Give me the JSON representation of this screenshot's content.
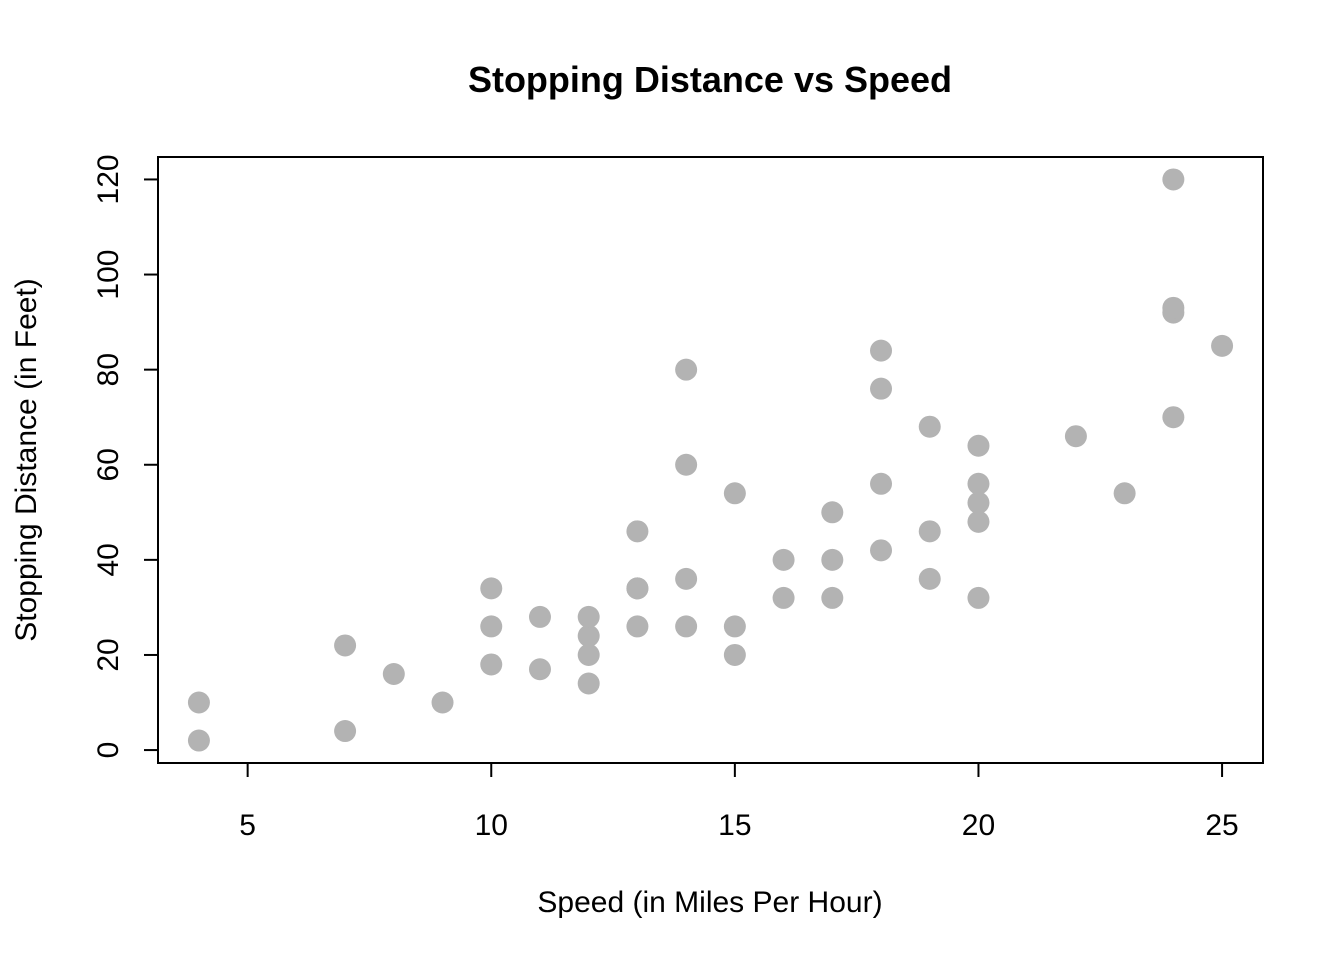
{
  "chart_data": {
    "type": "scatter",
    "title": "Stopping Distance vs Speed",
    "xlabel": "Speed (in Miles Per Hour)",
    "ylabel": "Stopping Distance (in Feet)",
    "xlim": [
      3.16,
      25.84
    ],
    "ylim": [
      -2.72,
      124.72
    ],
    "xticks": [
      5,
      10,
      15,
      20,
      25
    ],
    "yticks": [
      0,
      20,
      40,
      60,
      80,
      100,
      120
    ],
    "grid": false,
    "legend": "none",
    "point_color": "#b3b3b3",
    "points": [
      {
        "x": 4,
        "y": 2
      },
      {
        "x": 4,
        "y": 10
      },
      {
        "x": 7,
        "y": 4
      },
      {
        "x": 7,
        "y": 22
      },
      {
        "x": 8,
        "y": 16
      },
      {
        "x": 9,
        "y": 10
      },
      {
        "x": 10,
        "y": 18
      },
      {
        "x": 10,
        "y": 26
      },
      {
        "x": 10,
        "y": 34
      },
      {
        "x": 11,
        "y": 17
      },
      {
        "x": 11,
        "y": 28
      },
      {
        "x": 12,
        "y": 14
      },
      {
        "x": 12,
        "y": 20
      },
      {
        "x": 12,
        "y": 24
      },
      {
        "x": 12,
        "y": 28
      },
      {
        "x": 13,
        "y": 26
      },
      {
        "x": 13,
        "y": 34
      },
      {
        "x": 13,
        "y": 34
      },
      {
        "x": 13,
        "y": 46
      },
      {
        "x": 14,
        "y": 26
      },
      {
        "x": 14,
        "y": 36
      },
      {
        "x": 14,
        "y": 60
      },
      {
        "x": 14,
        "y": 80
      },
      {
        "x": 15,
        "y": 20
      },
      {
        "x": 15,
        "y": 26
      },
      {
        "x": 15,
        "y": 54
      },
      {
        "x": 16,
        "y": 32
      },
      {
        "x": 16,
        "y": 40
      },
      {
        "x": 17,
        "y": 32
      },
      {
        "x": 17,
        "y": 40
      },
      {
        "x": 17,
        "y": 50
      },
      {
        "x": 18,
        "y": 42
      },
      {
        "x": 18,
        "y": 56
      },
      {
        "x": 18,
        "y": 76
      },
      {
        "x": 18,
        "y": 84
      },
      {
        "x": 19,
        "y": 36
      },
      {
        "x": 19,
        "y": 46
      },
      {
        "x": 19,
        "y": 68
      },
      {
        "x": 20,
        "y": 32
      },
      {
        "x": 20,
        "y": 48
      },
      {
        "x": 20,
        "y": 52
      },
      {
        "x": 20,
        "y": 56
      },
      {
        "x": 20,
        "y": 64
      },
      {
        "x": 22,
        "y": 66
      },
      {
        "x": 23,
        "y": 54
      },
      {
        "x": 24,
        "y": 70
      },
      {
        "x": 24,
        "y": 92
      },
      {
        "x": 24,
        "y": 93
      },
      {
        "x": 24,
        "y": 120
      },
      {
        "x": 25,
        "y": 85
      }
    ]
  }
}
